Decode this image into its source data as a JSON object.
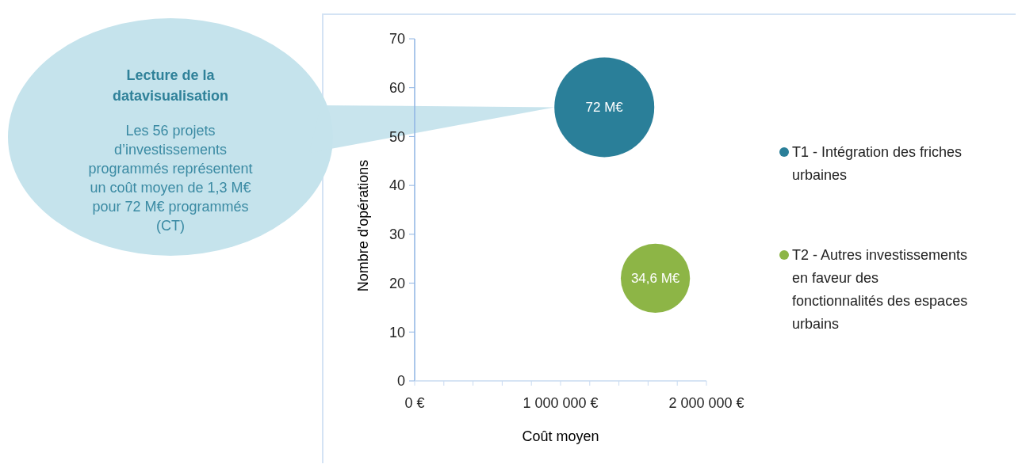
{
  "chart_data": {
    "type": "bubble",
    "xlabel": "Coût moyen",
    "ylabel": "Nombre d'opérations",
    "xlim": [
      0,
      2000000
    ],
    "xticks": [
      {
        "value": 0,
        "label": "0 €"
      },
      {
        "value": 200000,
        "label": null
      },
      {
        "value": 400000,
        "label": null
      },
      {
        "value": 600000,
        "label": null
      },
      {
        "value": 800000,
        "label": null
      },
      {
        "value": 1000000,
        "label": "1 000 000 €"
      },
      {
        "value": 1200000,
        "label": null
      },
      {
        "value": 1400000,
        "label": null
      },
      {
        "value": 1600000,
        "label": null
      },
      {
        "value": 1800000,
        "label": null
      },
      {
        "value": 2000000,
        "label": "2 000 000 €"
      }
    ],
    "ylim": [
      0,
      70
    ],
    "yticks": [
      0,
      10,
      20,
      30,
      40,
      50,
      60,
      70
    ],
    "grid": false,
    "legend": "right",
    "marker": "circle",
    "series": [
      {
        "name": "T1 - Intégration des friches urbaines",
        "color": "#2a7f99",
        "x": [
          1300000
        ],
        "values": [
          56
        ],
        "sizes": [
          1
        ]
      },
      {
        "name": "T2 - Autres investissements en faveur des fonctionnalités des espaces urbains",
        "color": "#8db546",
        "x": [
          1650000
        ],
        "values": [
          21
        ],
        "sizes": [
          0.48
        ]
      }
    ],
    "annotations": [
      "Lecture de la datavisualisation",
      "Les 56 projets d’investissements programmés représentent un coût moyen de 1,3 M€ pour 72 M€ programmés (CT)",
      {
        "text": "72 M€",
        "x": 1300000,
        "y": 56
      },
      {
        "text": "34,6 M€",
        "x": 1650000,
        "y": 21
      }
    ]
  }
}
